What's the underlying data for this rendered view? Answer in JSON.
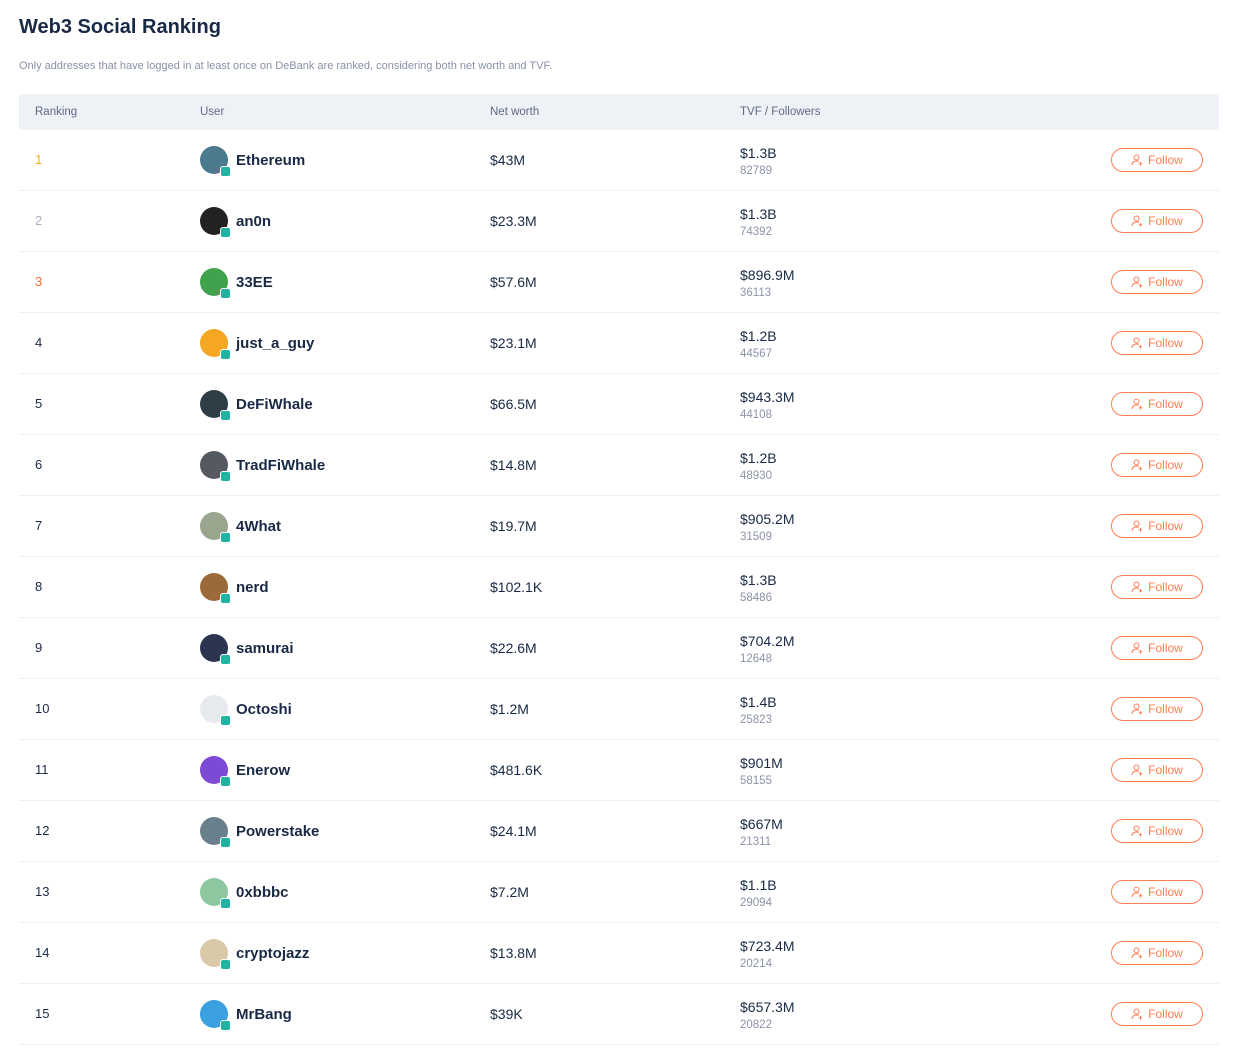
{
  "title": "Web3 Social Ranking",
  "subtitle": "Only addresses that have logged in at least once on DeBank are ranked, considering both net worth and TVF.",
  "columns": {
    "ranking": "Ranking",
    "user": "User",
    "net_worth": "Net worth",
    "tvf": "TVF / Followers"
  },
  "follow_label": "Follow",
  "colors": {
    "rank1": "#f5b400",
    "rank2": "#a9b0c0",
    "rank3": "#f7693a",
    "follow": "#ff7d52"
  },
  "rows": [
    {
      "rank": "1",
      "user": "Ethereum",
      "net_worth": "$43M",
      "tvf": "$1.3B",
      "followers": "82789",
      "avatar_color": "#4a7a8c"
    },
    {
      "rank": "2",
      "user": "an0n",
      "net_worth": "$23.3M",
      "tvf": "$1.3B",
      "followers": "74392",
      "avatar_color": "#222222"
    },
    {
      "rank": "3",
      "user": "33EE",
      "net_worth": "$57.6M",
      "tvf": "$896.9M",
      "followers": "36113",
      "avatar_color": "#3fa34d"
    },
    {
      "rank": "4",
      "user": "just_a_guy",
      "net_worth": "$23.1M",
      "tvf": "$1.2B",
      "followers": "44567",
      "avatar_color": "#f5a623"
    },
    {
      "rank": "5",
      "user": "DeFiWhale",
      "net_worth": "$66.5M",
      "tvf": "$943.3M",
      "followers": "44108",
      "avatar_color": "#2f3d46"
    },
    {
      "rank": "6",
      "user": "TradFiWhale",
      "net_worth": "$14.8M",
      "tvf": "$1.2B",
      "followers": "48930",
      "avatar_color": "#555a60"
    },
    {
      "rank": "7",
      "user": "4What",
      "net_worth": "$19.7M",
      "tvf": "$905.2M",
      "followers": "31509",
      "avatar_color": "#9aa58e"
    },
    {
      "rank": "8",
      "user": "nerd",
      "net_worth": "$102.1K",
      "tvf": "$1.3B",
      "followers": "58486",
      "avatar_color": "#9b6a3a"
    },
    {
      "rank": "9",
      "user": "samurai",
      "net_worth": "$22.6M",
      "tvf": "$704.2M",
      "followers": "12648",
      "avatar_color": "#2b3550"
    },
    {
      "rank": "10",
      "user": "Octoshi",
      "net_worth": "$1.2M",
      "tvf": "$1.4B",
      "followers": "25823",
      "avatar_color": "#e6e9ee"
    },
    {
      "rank": "11",
      "user": "Enerow",
      "net_worth": "$481.6K",
      "tvf": "$901M",
      "followers": "58155",
      "avatar_color": "#7b4bd6"
    },
    {
      "rank": "12",
      "user": "Powerstake",
      "net_worth": "$24.1M",
      "tvf": "$667M",
      "followers": "21311",
      "avatar_color": "#6a7f8c"
    },
    {
      "rank": "13",
      "user": "0xbbbc",
      "net_worth": "$7.2M",
      "tvf": "$1.1B",
      "followers": "29094",
      "avatar_color": "#8cc7a0"
    },
    {
      "rank": "14",
      "user": "cryptojazz",
      "net_worth": "$13.8M",
      "tvf": "$723.4M",
      "followers": "20214",
      "avatar_color": "#d9c9a8"
    },
    {
      "rank": "15",
      "user": "MrBang",
      "net_worth": "$39K",
      "tvf": "$657.3M",
      "followers": "20822",
      "avatar_color": "#3aa0e0"
    }
  ]
}
